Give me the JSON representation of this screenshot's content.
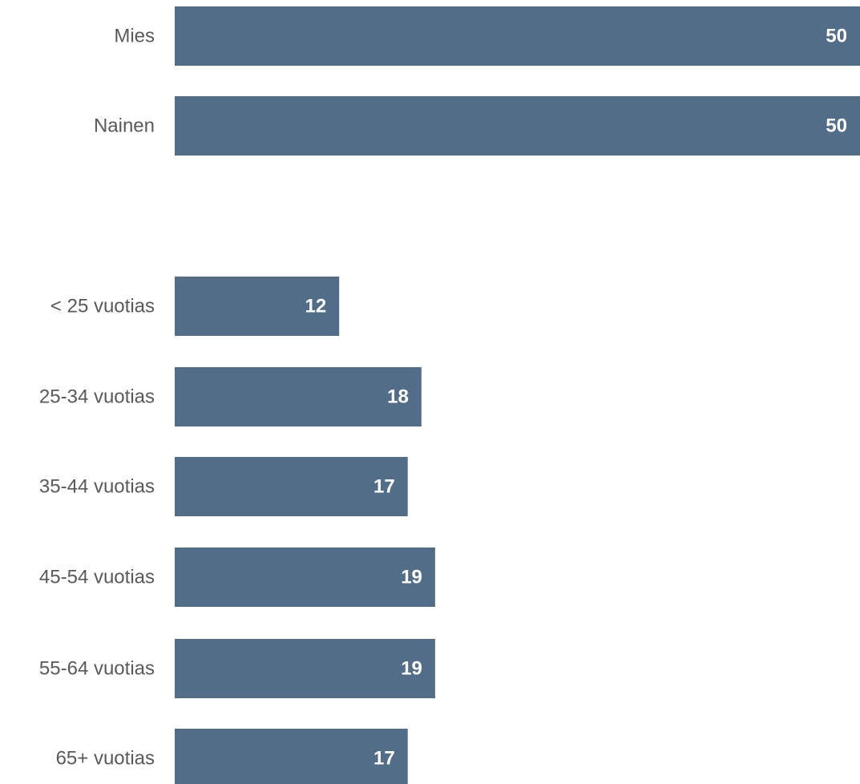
{
  "chart_data": [
    {
      "type": "bar",
      "orientation": "horizontal",
      "categories": [
        "Mies",
        "Nainen"
      ],
      "values": [
        50,
        50
      ],
      "data_labels": [
        "50",
        "50"
      ],
      "bar_color": "#516d87",
      "xlim": [
        0,
        50
      ]
    },
    {
      "type": "bar",
      "orientation": "horizontal",
      "categories": [
        "< 25 vuotias",
        "25-34 vuotias",
        "35-44 vuotias",
        "45-54 vuotias",
        "55-64 vuotias",
        "65+ vuotias"
      ],
      "values": [
        12,
        18,
        17,
        19,
        19,
        17
      ],
      "data_labels": [
        "12",
        "18",
        "17",
        "19",
        "19",
        "17"
      ],
      "bar_color": "#516d87",
      "xlim": [
        0,
        50
      ]
    }
  ]
}
